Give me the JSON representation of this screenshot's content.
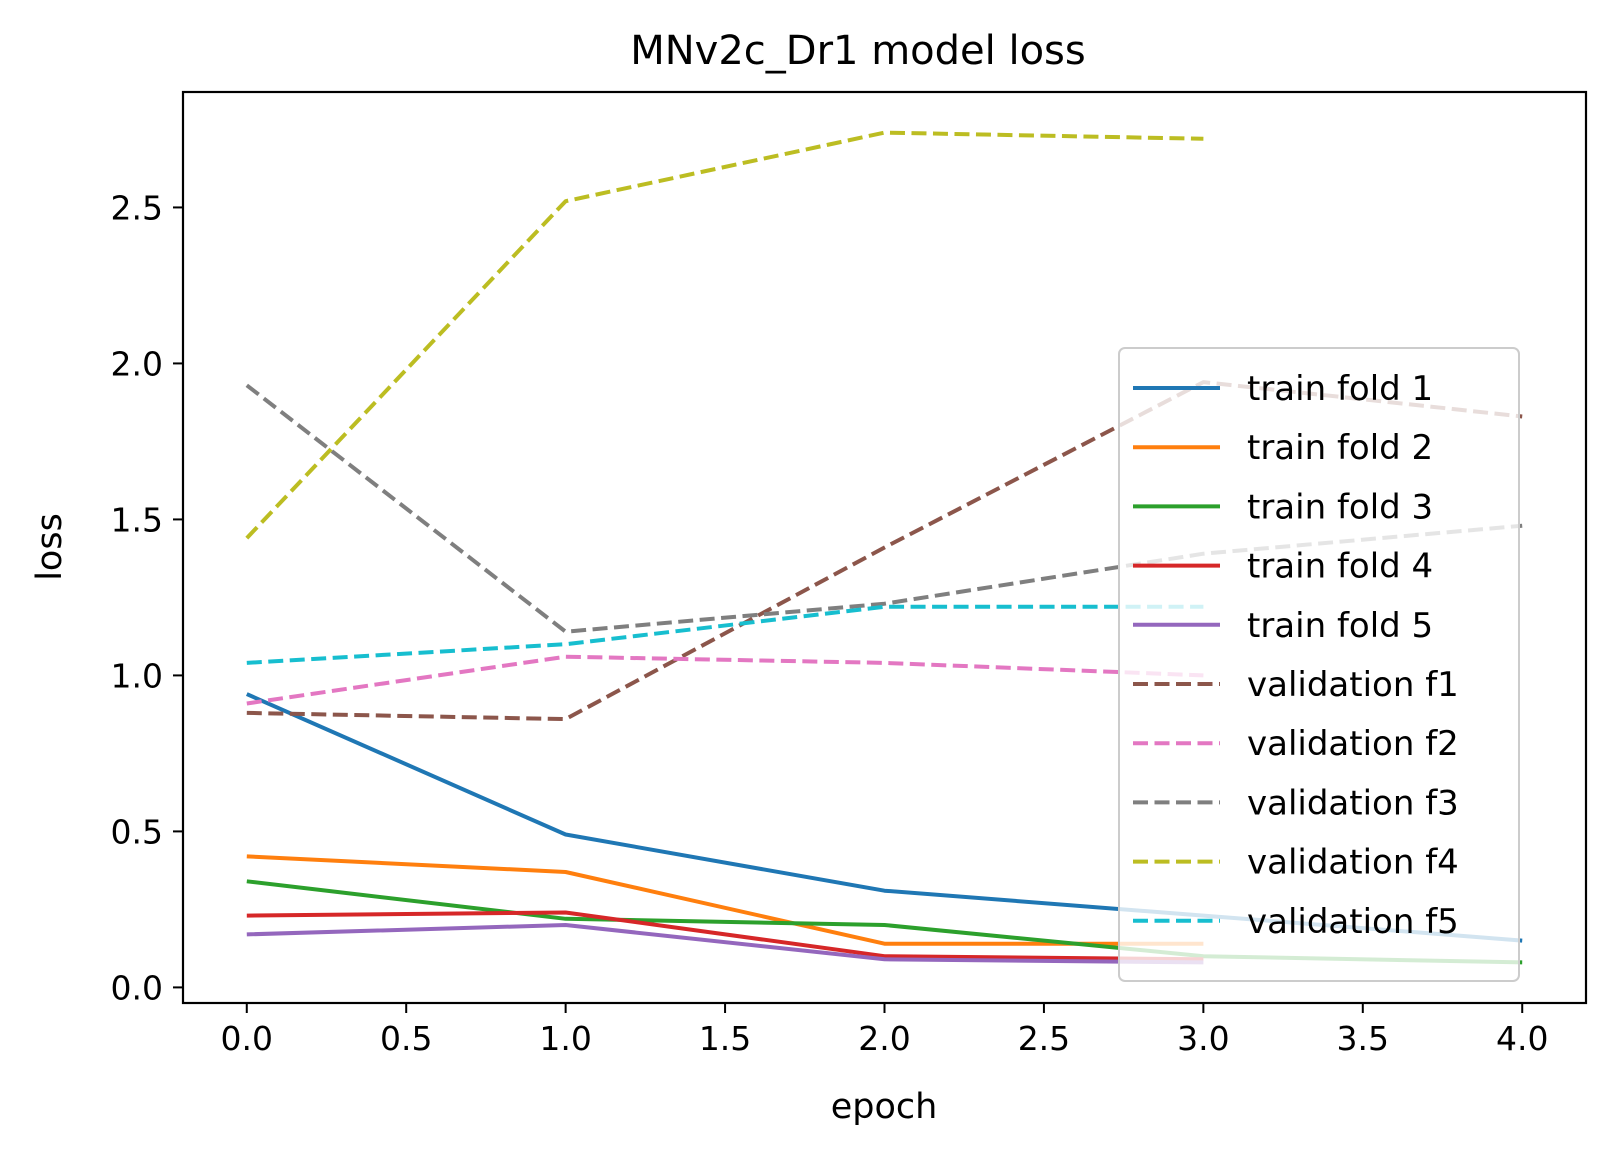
{
  "chart_data": {
    "type": "line",
    "title": "MNv2c_Dr1 model loss",
    "xlabel": "epoch",
    "ylabel": "loss",
    "xlim": [
      -0.2,
      4.2
    ],
    "ylim": [
      -0.05,
      2.87
    ],
    "xticks": [
      0.0,
      0.5,
      1.0,
      1.5,
      2.0,
      2.5,
      3.0,
      3.5,
      4.0
    ],
    "xtick_labels": [
      "0.0",
      "0.5",
      "1.0",
      "1.5",
      "2.0",
      "2.5",
      "3.0",
      "3.5",
      "4.0"
    ],
    "yticks": [
      0.0,
      0.5,
      1.0,
      1.5,
      2.0,
      2.5
    ],
    "ytick_labels": [
      "0.0",
      "0.5",
      "1.0",
      "1.5",
      "2.0",
      "2.5"
    ],
    "grid": false,
    "legend_position": "lower-right",
    "series": [
      {
        "name": "train fold 1",
        "color": "#1f77b4",
        "dash": "solid",
        "x": [
          0,
          1,
          2,
          3,
          4
        ],
        "y": [
          0.94,
          0.49,
          0.31,
          0.23,
          0.15
        ]
      },
      {
        "name": "train fold 2",
        "color": "#ff7f0e",
        "dash": "solid",
        "x": [
          0,
          1,
          2,
          3
        ],
        "y": [
          0.42,
          0.37,
          0.14,
          0.14
        ]
      },
      {
        "name": "train fold 3",
        "color": "#2ca02c",
        "dash": "solid",
        "x": [
          0,
          1,
          2,
          3,
          4
        ],
        "y": [
          0.34,
          0.22,
          0.2,
          0.1,
          0.08
        ]
      },
      {
        "name": "train fold 4",
        "color": "#d62728",
        "dash": "solid",
        "x": [
          0,
          1,
          2,
          3
        ],
        "y": [
          0.23,
          0.24,
          0.1,
          0.09
        ]
      },
      {
        "name": "train fold 5",
        "color": "#9467bd",
        "dash": "solid",
        "x": [
          0,
          1,
          2,
          3
        ],
        "y": [
          0.17,
          0.2,
          0.09,
          0.08
        ]
      },
      {
        "name": "validation f1",
        "color": "#8c564b",
        "dash": "dashed",
        "x": [
          0,
          1,
          2,
          3,
          4
        ],
        "y": [
          0.88,
          0.86,
          1.41,
          1.94,
          1.83
        ]
      },
      {
        "name": "validation f2",
        "color": "#e377c2",
        "dash": "dashed",
        "x": [
          0,
          1,
          2,
          3
        ],
        "y": [
          0.91,
          1.06,
          1.04,
          1.0
        ]
      },
      {
        "name": "validation f3",
        "color": "#7f7f7f",
        "dash": "dashed",
        "x": [
          0,
          1,
          2,
          3,
          4
        ],
        "y": [
          1.93,
          1.14,
          1.23,
          1.39,
          1.48
        ]
      },
      {
        "name": "validation f4",
        "color": "#bcbd22",
        "dash": "dashed",
        "x": [
          0,
          1,
          2,
          3
        ],
        "y": [
          1.44,
          2.52,
          2.74,
          2.72
        ]
      },
      {
        "name": "validation f5",
        "color": "#17becf",
        "dash": "dashed",
        "x": [
          0,
          1,
          2,
          3
        ],
        "y": [
          1.04,
          1.1,
          1.22,
          1.22
        ]
      }
    ]
  }
}
